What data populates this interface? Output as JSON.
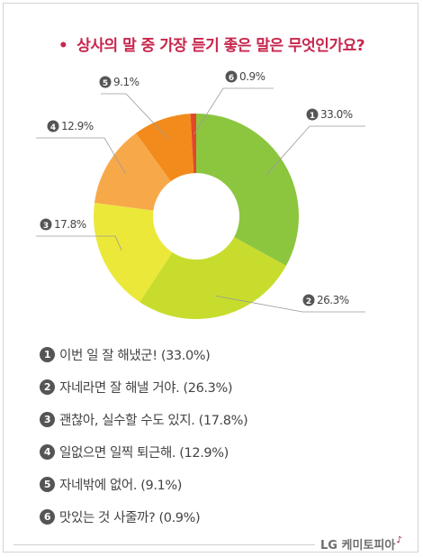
{
  "title": "상사의 말 중 가장 듣기 좋은 말은 무엇인가요?",
  "bullet": "•",
  "chart_data": {
    "type": "pie",
    "title": "상사의 말 중 가장 듣기 좋은 말은 무엇인가요?",
    "categories": [
      "이번 일 잘 해냈군!",
      "자네라면 잘 해낼 거야.",
      "괜찮아, 실수할 수도 있지.",
      "일없으면 일찍 퇴근해.",
      "자네밖에 없어.",
      "맛있는 것 사줄까?"
    ],
    "values": [
      33.0,
      26.3,
      17.8,
      12.9,
      9.1,
      0.9
    ],
    "colors": [
      "#8cc63f",
      "#c8dc2d",
      "#ece83a",
      "#f7a94a",
      "#f28b1c",
      "#e2472a"
    ],
    "data_labels": [
      "33.0%",
      "26.3%",
      "17.8%",
      "12.9%",
      "9.1%",
      "0.9%"
    ],
    "numbers": [
      "1",
      "2",
      "3",
      "4",
      "5",
      "6"
    ],
    "donut": true,
    "legend_position": "bottom"
  },
  "legend": [
    "이번 일 잘 해냈군! (33.0%)",
    "자네라면 잘 해낼 거야. (26.3%)",
    "괜찮아, 실수할 수도 있지. (17.8%)",
    "일없으면 일찍 퇴근해. (12.9%)",
    "자네밖에 없어. (9.1%)",
    "맛있는 것 사줄까? (0.9%)"
  ],
  "footer": {
    "logo_text": "LG 케미토피아",
    "logo_mark": "♪"
  }
}
